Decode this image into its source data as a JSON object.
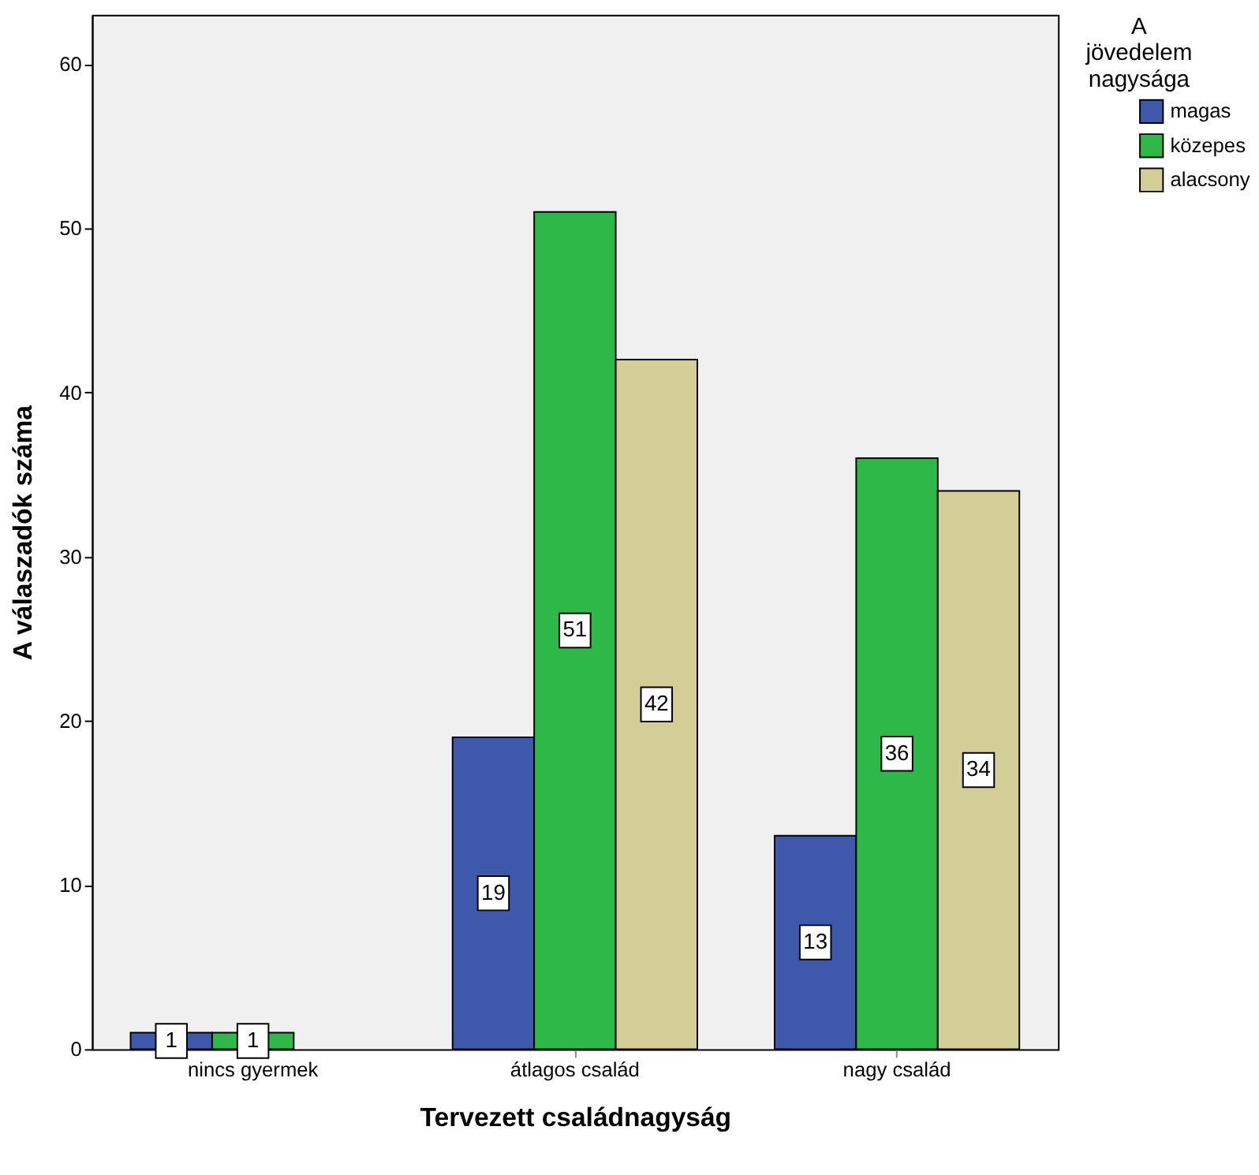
{
  "chart_data": {
    "type": "bar",
    "xlabel": "Tervezett családnagyság",
    "ylabel": "A válaszadók száma",
    "legend_title": "A jövedelem nagysága",
    "categories": [
      "nincs gyermek",
      "átlagos család",
      "nagy család"
    ],
    "series": [
      {
        "name": "magas",
        "color": "#3e58ac",
        "values": [
          1,
          19,
          13
        ]
      },
      {
        "name": "közepes",
        "color": "#2eb848",
        "values": [
          1,
          51,
          36
        ]
      },
      {
        "name": "alacsony",
        "color": "#d3ce97",
        "values": [
          null,
          42,
          34
        ]
      }
    ],
    "ylim": [
      0,
      63
    ],
    "yticks": [
      0,
      10,
      20,
      30,
      40,
      50,
      60
    ],
    "grid": false,
    "legend": "top right",
    "data_labels": true
  }
}
